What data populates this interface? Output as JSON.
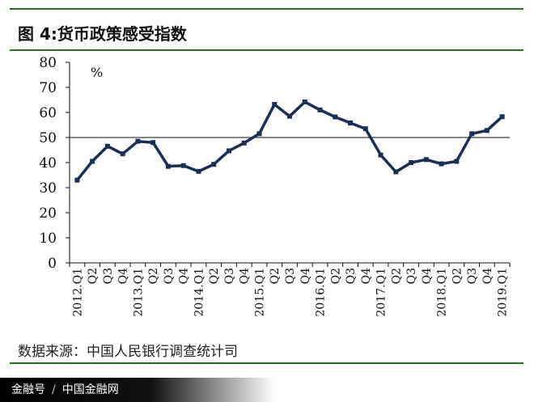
{
  "figure": {
    "title": "图 4:货币政策感受指数",
    "source": "数据来源：中国人民银行调查统计司"
  },
  "watermark": {
    "left": "金融号",
    "separator": "/",
    "right": "中国金融网"
  },
  "colors": {
    "series": "#1b2f55",
    "rule": "#2e6b2a",
    "axis": "#111111"
  },
  "chart_data": {
    "type": "line",
    "unit_label": "%",
    "ylim": [
      0,
      80
    ],
    "yticks": [
      0,
      10,
      20,
      30,
      40,
      50,
      60,
      70,
      80
    ],
    "reference_line": 50,
    "grid": false,
    "legend": "none",
    "categories": [
      "2012.Q1",
      "Q2",
      "Q3",
      "Q4",
      "2013.Q1",
      "Q2",
      "Q3",
      "Q4",
      "2014.Q1",
      "Q2",
      "Q3",
      "Q4",
      "2015.Q1",
      "Q2",
      "Q3",
      "Q4",
      "2016.Q1",
      "Q2",
      "Q3",
      "Q4",
      "2017.Q1",
      "Q2",
      "Q3",
      "Q4",
      "2018.Q1",
      "Q2",
      "Q3",
      "Q4",
      "2019.Q1"
    ],
    "series": [
      {
        "values": [
          33.0,
          40.5,
          46.5,
          43.5,
          48.5,
          48.0,
          38.5,
          38.8,
          36.5,
          39.3,
          44.7,
          47.8,
          51.5,
          63.2,
          58.5,
          64.2,
          61.0,
          58.2,
          55.8,
          53.5,
          43.0,
          36.3,
          40.0,
          41.2,
          39.5,
          40.5,
          51.5,
          52.8,
          58.3
        ]
      }
    ]
  }
}
